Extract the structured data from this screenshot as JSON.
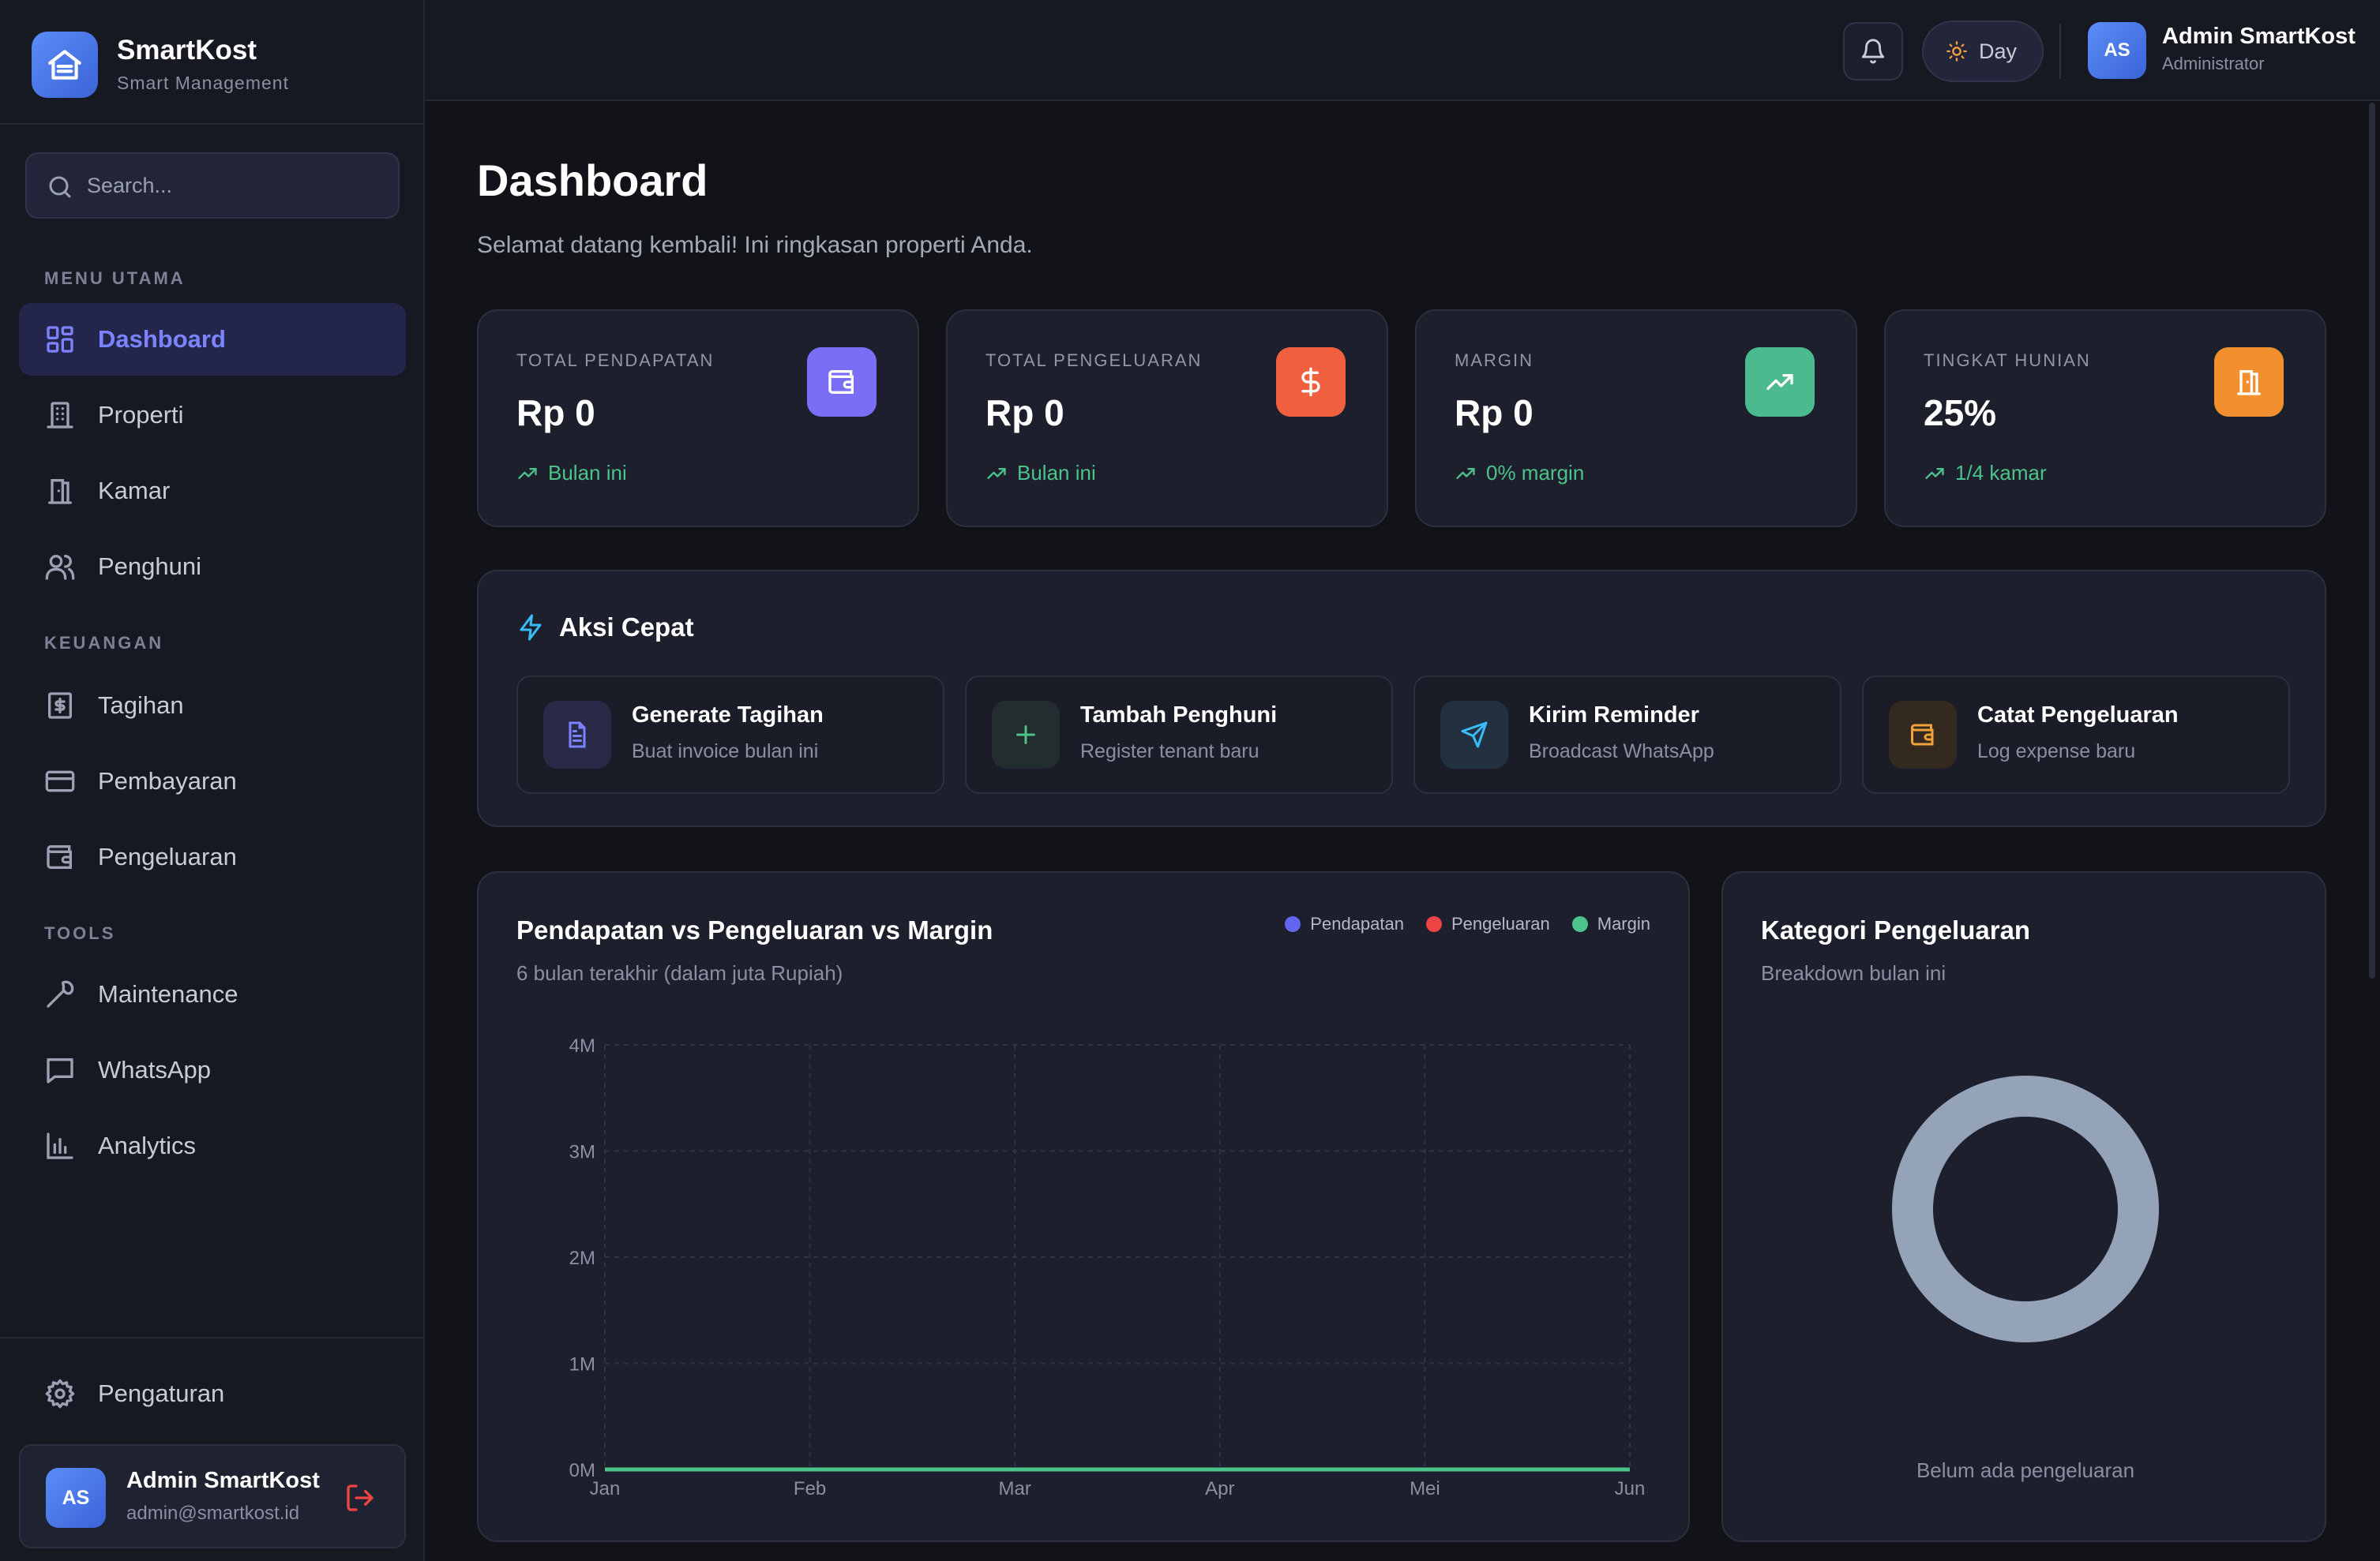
{
  "brand": {
    "name": "SmartKost",
    "subtitle": "Smart Management"
  },
  "search": {
    "placeholder": "Search..."
  },
  "sidebar": {
    "sections": [
      {
        "label": "MENU UTAMA"
      },
      {
        "label": "KEUANGAN"
      },
      {
        "label": "TOOLS"
      }
    ],
    "items": [
      {
        "label": "Dashboard",
        "icon": "dashboard-icon",
        "active": true
      },
      {
        "label": "Properti",
        "icon": "building-icon"
      },
      {
        "label": "Kamar",
        "icon": "door-icon"
      },
      {
        "label": "Penghuni",
        "icon": "users-icon"
      },
      {
        "label": "Tagihan",
        "icon": "invoice-icon"
      },
      {
        "label": "Pembayaran",
        "icon": "credit-card-icon"
      },
      {
        "label": "Pengeluaran",
        "icon": "wallet-icon"
      },
      {
        "label": "Maintenance",
        "icon": "wrench-icon"
      },
      {
        "label": "WhatsApp",
        "icon": "message-icon"
      },
      {
        "label": "Analytics",
        "icon": "bar-chart-icon"
      }
    ],
    "settings": {
      "label": "Pengaturan",
      "icon": "gear-icon"
    },
    "user": {
      "initials": "AS",
      "name": "Admin SmartKost",
      "email": "admin@smartkost.id"
    }
  },
  "topbar": {
    "theme_label": "Day",
    "user": {
      "initials": "AS",
      "name": "Admin SmartKost",
      "role": "Administrator"
    }
  },
  "page": {
    "title": "Dashboard",
    "subtitle": "Selamat datang kembali! Ini ringkasan properti Anda."
  },
  "stats": [
    {
      "label": "TOTAL PENDAPATAN",
      "value": "Rp 0",
      "trend": "Bulan ini",
      "icon": "wallet-icon",
      "color": "#7b6ef6"
    },
    {
      "label": "TOTAL PENGELUARAN",
      "value": "Rp 0",
      "trend": "Bulan ini",
      "icon": "dollar-icon",
      "color": "#f0603f"
    },
    {
      "label": "MARGIN",
      "value": "Rp 0",
      "trend": "0% margin",
      "icon": "trending-up-icon",
      "color": "#4cba8f"
    },
    {
      "label": "TINGKAT HUNIAN",
      "value": "25%",
      "trend": "1/4 kamar",
      "icon": "door-icon",
      "color": "#f28f2e"
    }
  ],
  "quick_actions": {
    "title": "Aksi Cepat",
    "items": [
      {
        "title": "Generate Tagihan",
        "subtitle": "Buat invoice bulan ini",
        "icon": "document-icon"
      },
      {
        "title": "Tambah Penghuni",
        "subtitle": "Register tenant baru",
        "icon": "plus-icon"
      },
      {
        "title": "Kirim Reminder",
        "subtitle": "Broadcast WhatsApp",
        "icon": "send-icon"
      },
      {
        "title": "Catat Pengeluaran",
        "subtitle": "Log expense baru",
        "icon": "wallet-icon"
      }
    ]
  },
  "chart_card": {
    "title": "Pendapatan vs Pengeluaran vs Margin",
    "subtitle": "6 bulan terakhir (dalam juta Rupiah)"
  },
  "pie_card": {
    "title": "Kategori Pengeluaran",
    "subtitle": "Breakdown bulan ini",
    "empty": "Belum ada pengeluaran"
  },
  "chart_data": [
    {
      "type": "line",
      "title": "Pendapatan vs Pengeluaran vs Margin",
      "subtitle": "6 bulan terakhir (dalam juta Rupiah)",
      "x": [
        "Jan",
        "Feb",
        "Mar",
        "Apr",
        "Mei",
        "Jun"
      ],
      "yticks": [
        "0M",
        "1M",
        "2M",
        "3M",
        "4M"
      ],
      "ylim": [
        0,
        4
      ],
      "grid": true,
      "legend_position": "top-right",
      "series": [
        {
          "name": "Pendapatan",
          "color": "#6366f1",
          "values": [
            0,
            0,
            0,
            0,
            0,
            0
          ]
        },
        {
          "name": "Pengeluaran",
          "color": "#ef4444",
          "values": [
            0,
            0,
            0,
            0,
            0,
            0
          ]
        },
        {
          "name": "Margin",
          "color": "#4cc38a",
          "values": [
            0,
            0,
            0,
            0,
            0,
            0
          ]
        }
      ]
    },
    {
      "type": "pie",
      "title": "Kategori Pengeluaran",
      "subtitle": "Breakdown bulan ini",
      "slices": [],
      "empty_color": "#94a3b8"
    }
  ]
}
